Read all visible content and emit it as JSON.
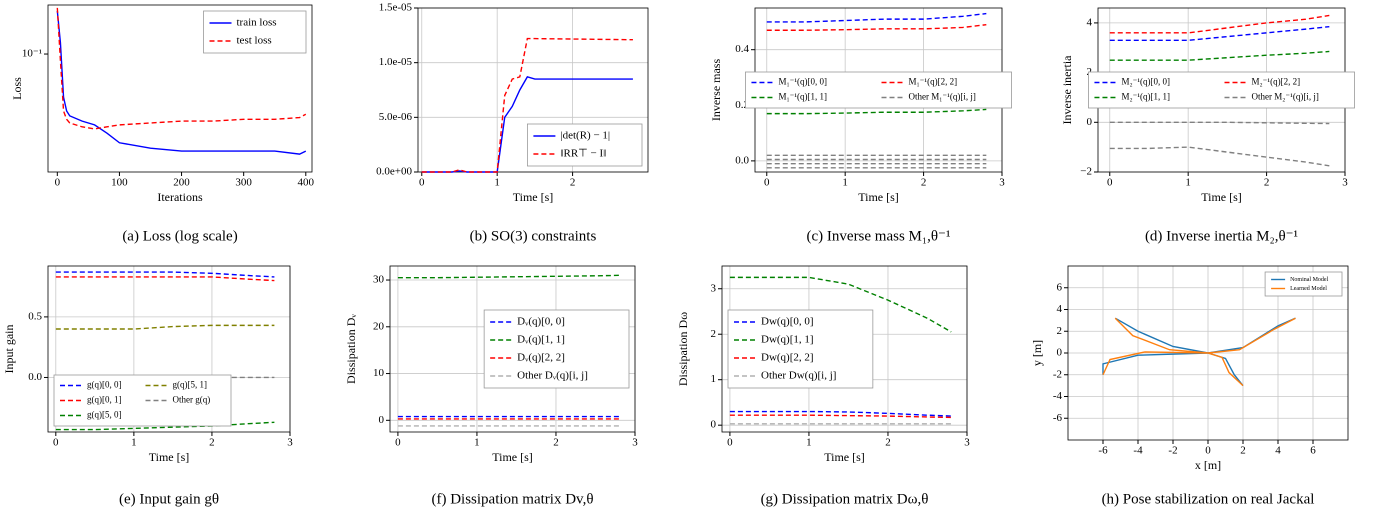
{
  "chart_data": [
    {
      "type": "line",
      "caption": "(a) Loss (log scale)",
      "x_label": "Iterations",
      "y_label": "Loss",
      "log_y": true,
      "grid": false,
      "xlim": [
        -15,
        410
      ],
      "xticks": [
        0,
        100,
        200,
        300,
        400
      ],
      "ylim": [
        0.015,
        0.22
      ],
      "yticks": [
        {
          "value": 0.1,
          "label": "10⁻¹"
        }
      ],
      "legend": "upper right",
      "ncol": 1,
      "x": [
        0,
        5,
        10,
        15,
        20,
        40,
        60,
        80,
        100,
        150,
        200,
        250,
        300,
        350,
        390,
        400
      ],
      "series": [
        {
          "name": "train loss",
          "color": "#0000ff",
          "dash": false,
          "values": [
            0.2,
            0.12,
            0.05,
            0.04,
            0.037,
            0.034,
            0.032,
            0.028,
            0.024,
            0.022,
            0.021,
            0.021,
            0.021,
            0.021,
            0.02,
            0.021
          ]
        },
        {
          "name": "test loss",
          "color": "#ff0000",
          "dash": true,
          "values": [
            0.21,
            0.09,
            0.04,
            0.035,
            0.033,
            0.031,
            0.03,
            0.031,
            0.032,
            0.033,
            0.034,
            0.034,
            0.035,
            0.035,
            0.036,
            0.038
          ]
        }
      ]
    },
    {
      "type": "line",
      "caption": "(b) SO(3) constraints",
      "x_label": "Time [s]",
      "grid": true,
      "xlim": [
        -0.05,
        3
      ],
      "xticks": [
        0,
        1,
        2
      ],
      "ylim": [
        0,
        1.5e-05
      ],
      "yticks": [
        {
          "value": 0,
          "label": "0.0e+00"
        },
        {
          "value": 5e-06,
          "label": "5.0e-06"
        },
        {
          "value": 1e-05,
          "label": "1.0e-05"
        },
        {
          "value": 1.5e-05,
          "label": "1.5e-05"
        }
      ],
      "legend": "lower right",
      "ncol": 1,
      "x": [
        0,
        0.4,
        0.5,
        0.6,
        1.0,
        1.1,
        1.2,
        1.3,
        1.4,
        1.5,
        2.8
      ],
      "series": [
        {
          "name": "|det(R) − 1|",
          "color": "#0000ff",
          "dash": false,
          "values": [
            0,
            0,
            1e-07,
            0,
            0,
            5e-06,
            6e-06,
            7.5e-06,
            8.7e-06,
            8.5e-06,
            8.5e-06
          ]
        },
        {
          "name": "‖RR⊤ − I‖",
          "color": "#ff0000",
          "dash": true,
          "values": [
            0,
            0,
            2e-07,
            0,
            0,
            7e-06,
            8.5e-06,
            8.7e-06,
            1.22e-05,
            1.22e-05,
            1.21e-05
          ]
        }
      ]
    },
    {
      "type": "line",
      "caption": "(c) Inverse mass M₁,θ⁻¹",
      "x_label": "Time [s]",
      "y_label": "Inverse mass",
      "grid": true,
      "xlim": [
        -0.15,
        3
      ],
      "xticks": [
        0,
        1,
        2,
        3
      ],
      "ylim": [
        -0.04,
        0.55
      ],
      "yticks": [
        {
          "value": 0,
          "label": "0.0"
        },
        0.2,
        0.4
      ],
      "legend": "center",
      "ncol": 2,
      "x": [
        0,
        0.5,
        1,
        1.5,
        2,
        2.5,
        2.8
      ],
      "series": [
        {
          "name": "M₁⁻¹(q)[0, 0]",
          "color": "#0000ff",
          "dash": true,
          "values": [
            0.5,
            0.5,
            0.505,
            0.51,
            0.51,
            0.52,
            0.53
          ]
        },
        {
          "name": "M₁⁻¹(q)[1, 1]",
          "color": "#008000",
          "dash": true,
          "values": [
            0.17,
            0.17,
            0.172,
            0.175,
            0.175,
            0.18,
            0.185
          ]
        },
        {
          "name": "M₁⁻¹(q)[2, 2]",
          "color": "#ff0000",
          "dash": true,
          "values": [
            0.47,
            0.47,
            0.472,
            0.475,
            0.475,
            0.48,
            0.49
          ]
        },
        {
          "name": "Other M₁⁻¹(q)[i, j]",
          "color": "#808080",
          "dash": true,
          "values": [
            0.005,
            0.005,
            0.005,
            0.005,
            0.005,
            0.005,
            0.005
          ]
        },
        {
          "color": "#808080",
          "dash": true,
          "values": [
            0.02,
            0.02,
            0.02,
            0.02,
            0.02,
            0.02,
            0.02
          ]
        },
        {
          "color": "#808080",
          "dash": true,
          "values": [
            -0.01,
            -0.01,
            -0.01,
            -0.01,
            -0.01,
            -0.01,
            -0.01
          ]
        },
        {
          "color": "#808080",
          "dash": true,
          "values": [
            -0.025,
            -0.025,
            -0.025,
            -0.025,
            -0.025,
            -0.025,
            -0.025
          ]
        }
      ]
    },
    {
      "type": "line",
      "caption": "(d) Inverse inertia M₂,θ⁻¹",
      "x_label": "Time [s]",
      "y_label": "Inverse inertia",
      "grid": true,
      "xlim": [
        -0.15,
        3
      ],
      "xticks": [
        0,
        1,
        2,
        3
      ],
      "ylim": [
        -2,
        4.6
      ],
      "yticks": [
        {
          "value": -2,
          "label": "−2"
        },
        0,
        2,
        4
      ],
      "legend": "center",
      "ncol": 2,
      "x": [
        0,
        0.5,
        1,
        1.5,
        2,
        2.5,
        2.8
      ],
      "series": [
        {
          "name": "M₂⁻¹(q)[0, 0]",
          "color": "#0000ff",
          "dash": true,
          "values": [
            3.3,
            3.3,
            3.3,
            3.45,
            3.6,
            3.75,
            3.85
          ]
        },
        {
          "name": "M₂⁻¹(q)[1, 1]",
          "color": "#008000",
          "dash": true,
          "values": [
            2.5,
            2.5,
            2.5,
            2.6,
            2.7,
            2.78,
            2.85
          ]
        },
        {
          "name": "M₂⁻¹(q)[2, 2]",
          "color": "#ff0000",
          "dash": true,
          "values": [
            3.6,
            3.6,
            3.6,
            3.8,
            4.0,
            4.15,
            4.3
          ]
        },
        {
          "name": "Other M₂⁻¹(q)[i, j]",
          "color": "#808080",
          "dash": true,
          "values": [
            0,
            0,
            0,
            0,
            -0.02,
            -0.04,
            -0.05
          ]
        },
        {
          "color": "#808080",
          "dash": true,
          "values": [
            -1.05,
            -1.05,
            -1.0,
            -1.2,
            -1.4,
            -1.6,
            -1.75
          ]
        }
      ]
    },
    {
      "type": "line",
      "caption": "(e) Input gain gθ",
      "x_label": "Time [s]",
      "y_label": "Input gain",
      "grid": true,
      "xlim": [
        -0.1,
        3
      ],
      "xticks": [
        0,
        1,
        2,
        3
      ],
      "ylim": [
        -0.45,
        0.92
      ],
      "yticks": [
        {
          "value": 0,
          "label": "0.0"
        },
        0.5
      ],
      "legend": "lower left",
      "ncol": 2,
      "x": [
        0,
        0.5,
        1,
        1.5,
        2,
        2.5,
        2.8
      ],
      "series": [
        {
          "name": "g(q)[0, 0]",
          "color": "#0000ff",
          "dash": true,
          "values": [
            0.87,
            0.87,
            0.87,
            0.87,
            0.86,
            0.84,
            0.83
          ]
        },
        {
          "name": "g(q)[0, 1]",
          "color": "#ff0000",
          "dash": true,
          "values": [
            0.83,
            0.83,
            0.83,
            0.83,
            0.83,
            0.81,
            0.8
          ]
        },
        {
          "name": "g(q)[5, 0]",
          "color": "#008000",
          "dash": true,
          "values": [
            -0.43,
            -0.43,
            -0.42,
            -0.41,
            -0.4,
            -0.38,
            -0.37
          ]
        },
        {
          "name": "g(q)[5, 1]",
          "color": "#808000",
          "dash": true,
          "values": [
            0.4,
            0.4,
            0.4,
            0.42,
            0.43,
            0.43,
            0.43
          ]
        },
        {
          "name": "Other g(q)",
          "color": "#808080",
          "dash": true,
          "values": [
            0,
            0,
            0,
            0,
            0,
            0,
            0
          ]
        }
      ]
    },
    {
      "type": "line",
      "caption": "(f) Dissipation matrix Dv,θ",
      "x_label": "Time [s]",
      "y_label": "Dissipation Dᵥ",
      "grid": true,
      "xlim": [
        -0.1,
        3
      ],
      "xticks": [
        0,
        1,
        2,
        3
      ],
      "ylim": [
        -2.5,
        33
      ],
      "yticks": [
        0,
        10,
        20,
        30
      ],
      "legend": "center right",
      "ncol": 1,
      "x": [
        0,
        0.5,
        1,
        1.5,
        2,
        2.5,
        2.8
      ],
      "series": [
        {
          "name": "Dᵥ(q)[0, 0]",
          "color": "#0000ff",
          "dash": true,
          "values": [
            0.8,
            0.8,
            0.8,
            0.8,
            0.8,
            0.8,
            0.8
          ]
        },
        {
          "name": "Dᵥ(q)[1, 1]",
          "color": "#008000",
          "dash": true,
          "values": [
            30.5,
            30.5,
            30.6,
            30.7,
            30.8,
            30.9,
            31
          ]
        },
        {
          "name": "Dᵥ(q)[2, 2]",
          "color": "#ff0000",
          "dash": true,
          "values": [
            0.3,
            0.3,
            0.3,
            0.3,
            0.3,
            0.3,
            0.3
          ]
        },
        {
          "name": "Other Dᵥ(q)[i, j]",
          "color": "#b0b0b0",
          "dash": true,
          "values": [
            -1.2,
            -1.2,
            -1.2,
            -1.2,
            -1.2,
            -1.2,
            -1.2
          ]
        }
      ]
    },
    {
      "type": "line",
      "caption": "(g) Dissipation matrix Dω,θ",
      "x_label": "Time [s]",
      "y_label": "Dissipation Dω",
      "grid": true,
      "xlim": [
        -0.1,
        3
      ],
      "xticks": [
        0,
        1,
        2,
        3
      ],
      "ylim": [
        -0.15,
        3.5
      ],
      "yticks": [
        0,
        1,
        2,
        3
      ],
      "legend": "center left",
      "ncol": 1,
      "x": [
        0,
        0.5,
        1,
        1.5,
        2,
        2.5,
        2.8
      ],
      "series": [
        {
          "name": "Dw(q)[0, 0]",
          "color": "#0000ff",
          "dash": true,
          "values": [
            0.3,
            0.3,
            0.3,
            0.29,
            0.26,
            0.22,
            0.2
          ]
        },
        {
          "name": "Dw(q)[1, 1]",
          "color": "#008000",
          "dash": true,
          "values": [
            3.25,
            3.25,
            3.25,
            3.1,
            2.75,
            2.35,
            2.05
          ]
        },
        {
          "name": "Dw(q)[2, 2]",
          "color": "#ff0000",
          "dash": true,
          "values": [
            0.22,
            0.22,
            0.22,
            0.21,
            0.2,
            0.18,
            0.17
          ]
        },
        {
          "name": "Other Dw(q)[i, j]",
          "color": "#b0b0b0",
          "dash": true,
          "values": [
            0.03,
            0.03,
            0.03,
            0.03,
            0.03,
            0.03,
            0.03
          ]
        }
      ]
    },
    {
      "type": "line",
      "caption": "(h) Pose stabilization on real Jackal",
      "x_label": "x [m]",
      "y_label": "y [m]",
      "grid": true,
      "xlim": [
        -8,
        8
      ],
      "xticks": [
        -6,
        -4,
        -2,
        0,
        2,
        4,
        6
      ],
      "ylim": [
        -8,
        8
      ],
      "yticks": [
        -6,
        -4,
        -2,
        0,
        2,
        4,
        6
      ],
      "legend": "upper right",
      "ncol": 1,
      "series": [
        {
          "name": "Nominal Model",
          "color": "#1f77b4",
          "dash": false,
          "x": [
            -5.3,
            -4,
            -2,
            0,
            null,
            5,
            4,
            2,
            0,
            null,
            -6,
            -6,
            -4,
            0,
            null,
            2,
            1.5,
            1,
            0
          ],
          "values": [
            3.2,
            2,
            0.6,
            0,
            null,
            3.2,
            2.5,
            0.5,
            0,
            null,
            -2,
            -1,
            -0.2,
            0,
            null,
            -3,
            -2,
            -0.5,
            0
          ]
        },
        {
          "name": "Learned Model",
          "color": "#ff7f0e",
          "dash": false,
          "x": [
            -5.3,
            -4.3,
            -2.2,
            0,
            null,
            5,
            3.8,
            1.8,
            0,
            null,
            -6,
            -5.6,
            -3.6,
            0,
            null,
            2,
            1.2,
            0.8,
            0
          ],
          "values": [
            3.2,
            1.6,
            0.3,
            0,
            null,
            3.2,
            2.2,
            0.3,
            0,
            null,
            -2,
            -0.6,
            0.1,
            0,
            null,
            -3,
            -1.8,
            -0.4,
            0
          ]
        }
      ]
    }
  ]
}
